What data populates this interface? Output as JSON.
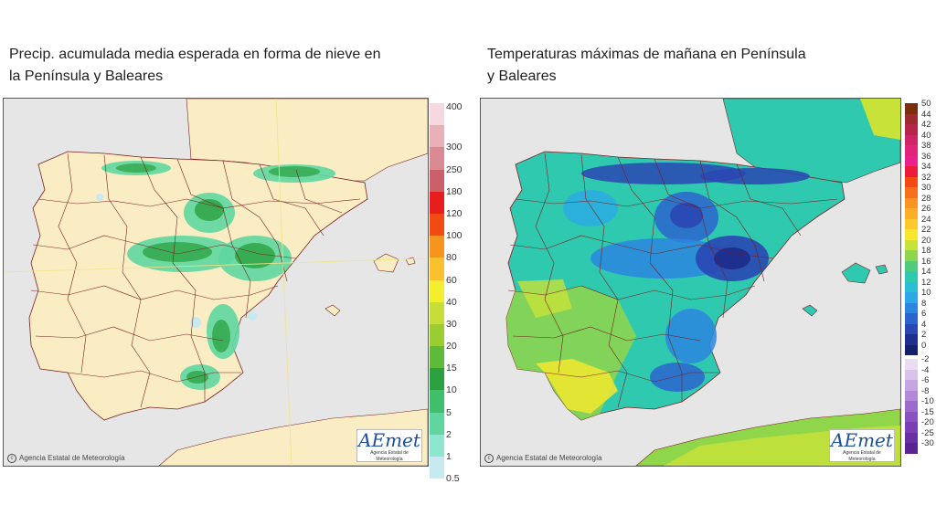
{
  "left_panel": {
    "title": "Precip. acumulada media esperada en forma de nieve en\nla Península y Baleares",
    "credit": "Agencia Estatal de Meteorología",
    "logo_text": "AEmet",
    "logo_subtext": "Agencia Estatal de Meteorología",
    "legend": [
      {
        "label": "400",
        "color": "#f5d9de"
      },
      {
        "label": "300",
        "color": "#e8b1b8"
      },
      {
        "label": "250",
        "color": "#d98a92"
      },
      {
        "label": "180",
        "color": "#c9606a"
      },
      {
        "label": "120",
        "color": "#e81d1d"
      },
      {
        "label": "100",
        "color": "#f24a12"
      },
      {
        "label": "80",
        "color": "#f7941d"
      },
      {
        "label": "60",
        "color": "#fbc02d"
      },
      {
        "label": "40",
        "color": "#f4ef2e"
      },
      {
        "label": "30",
        "color": "#c5de3a"
      },
      {
        "label": "20",
        "color": "#9acd32"
      },
      {
        "label": "15",
        "color": "#5fb93b"
      },
      {
        "label": "10",
        "color": "#2aa03f"
      },
      {
        "label": "5",
        "color": "#3dbf6b"
      },
      {
        "label": "2",
        "color": "#5fd6a0"
      },
      {
        "label": "1",
        "color": "#8ee6cf"
      },
      {
        "label": "0.5",
        "color": "#c7e9f0"
      }
    ]
  },
  "right_panel": {
    "title": "Temperaturas máximas de mañana en Península\ny Baleares",
    "credit": "Agencia Estatal de Meteorología",
    "logo_text": "AEmet",
    "logo_subtext": "Agencia Estatal de Meteorología",
    "legend_warm": [
      {
        "label": "50",
        "color": "#7b2d0c"
      },
      {
        "label": "44",
        "color": "#9c2a2e"
      },
      {
        "label": "42",
        "color": "#b5264a"
      },
      {
        "label": "40",
        "color": "#cf2466"
      },
      {
        "label": "38",
        "color": "#e0247e"
      },
      {
        "label": "36",
        "color": "#ec1f8f"
      },
      {
        "label": "34",
        "color": "#ee1a3c"
      },
      {
        "label": "32",
        "color": "#f24a12"
      },
      {
        "label": "30",
        "color": "#f7701a"
      },
      {
        "label": "28",
        "color": "#f99420"
      },
      {
        "label": "26",
        "color": "#fbaf26"
      },
      {
        "label": "24",
        "color": "#fcc82b"
      },
      {
        "label": "22",
        "color": "#f5e82f"
      },
      {
        "label": "20",
        "color": "#c8e23a"
      },
      {
        "label": "18",
        "color": "#8fd64a"
      },
      {
        "label": "16",
        "color": "#4fcb7e"
      },
      {
        "label": "14",
        "color": "#2fc9b0"
      },
      {
        "label": "12",
        "color": "#2bbfd6"
      },
      {
        "label": "10",
        "color": "#2aa9e6"
      },
      {
        "label": "8",
        "color": "#2b86e0"
      },
      {
        "label": "6",
        "color": "#2b64cf"
      },
      {
        "label": "4",
        "color": "#2a47b3"
      },
      {
        "label": "2",
        "color": "#1f2f8f"
      },
      {
        "label": "0",
        "color": "#15206a"
      }
    ],
    "legend_cold": [
      {
        "label": "-2",
        "color": "#e9dcf3"
      },
      {
        "label": "-4",
        "color": "#d9c2ec"
      },
      {
        "label": "-6",
        "color": "#c6a5e3"
      },
      {
        "label": "-8",
        "color": "#b288d9"
      },
      {
        "label": "-10",
        "color": "#9c6acd"
      },
      {
        "label": "-15",
        "color": "#8a52c1"
      },
      {
        "label": "-20",
        "color": "#7a3fb4"
      },
      {
        "label": "-25",
        "color": "#6b2fa4"
      },
      {
        "label": "-30",
        "color": "#5b2392"
      }
    ]
  }
}
